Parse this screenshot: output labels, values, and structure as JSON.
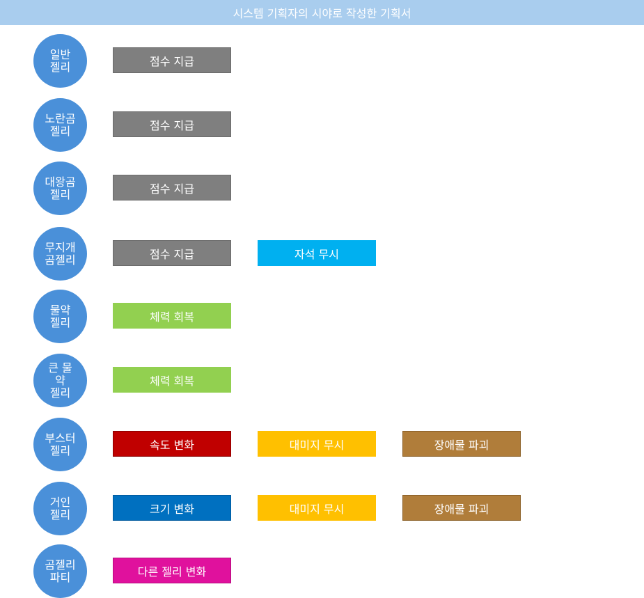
{
  "title": "시스템 기획자의 시야로 작성한 기획서",
  "rows": [
    {
      "label": "일반\n젤리",
      "actions": [
        {
          "text": "점수 지급",
          "color": "#7f7f7f",
          "border": "#6a6a6a"
        }
      ]
    },
    {
      "label": "노란곰\n젤리",
      "actions": [
        {
          "text": "점수 지급",
          "color": "#7f7f7f",
          "border": "#6a6a6a"
        }
      ]
    },
    {
      "label": "대왕곰\n젤리",
      "actions": [
        {
          "text": "점수 지급",
          "color": "#7f7f7f",
          "border": "#6a6a6a"
        }
      ]
    },
    {
      "label": "무지개\n곰젤리",
      "actions": [
        {
          "text": "점수 지급",
          "color": "#7f7f7f",
          "border": "#6a6a6a"
        },
        {
          "text": "자석 무시",
          "color": "#00b0f0",
          "border": "#00b0f0"
        }
      ]
    },
    {
      "label": "물약\n젤리",
      "actions": [
        {
          "text": "체력 회복",
          "color": "#92d050",
          "border": "#92d050"
        }
      ]
    },
    {
      "label": "큰 물\n약\n젤리",
      "actions": [
        {
          "text": "체력 회복",
          "color": "#92d050",
          "border": "#92d050"
        }
      ]
    },
    {
      "label": "부스터\n젤리",
      "actions": [
        {
          "text": "속도 변화",
          "color": "#c00000",
          "border": "#8b0000"
        },
        {
          "text": "대미지 무시",
          "color": "#ffc000",
          "border": "#ffc000"
        },
        {
          "text": "장애물 파괴",
          "color": "#b07d3a",
          "border": "#8c6128"
        }
      ]
    },
    {
      "label": "거인\n젤리",
      "actions": [
        {
          "text": "크기 변화",
          "color": "#0070c0",
          "border": "#005a9e"
        },
        {
          "text": "대미지 무시",
          "color": "#ffc000",
          "border": "#ffc000"
        },
        {
          "text": "장애물 파괴",
          "color": "#b07d3a",
          "border": "#8c6128"
        }
      ]
    },
    {
      "label": "곰젤리\n파티",
      "actions": [
        {
          "text": "다른 젤리 변화",
          "color": "#e0119d",
          "border": "#b50d7e"
        }
      ]
    }
  ]
}
